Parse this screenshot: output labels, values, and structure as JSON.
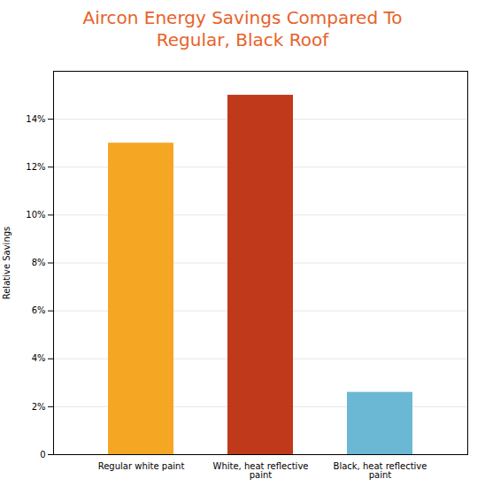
{
  "chart_data": {
    "type": "bar",
    "title": "Aircon Energy Savings Compared To\nRegular, Black Roof",
    "categories": [
      "Regular white paint",
      "White, heat reflective\npaint",
      "Black, heat reflective\npaint"
    ],
    "values": [
      13.0,
      15.0,
      2.6
    ],
    "colors": [
      "#F5A623",
      "#C0391B",
      "#6BB8D4"
    ],
    "ylabel": "Relative Savings",
    "ylim": [
      0,
      16
    ],
    "yticks": [
      0,
      {
        "value": 2,
        "label": "2%"
      },
      {
        "value": 4,
        "label": "4%"
      },
      {
        "value": 6,
        "label": "6%"
      },
      {
        "value": 8,
        "label": "8%"
      },
      {
        "value": 10,
        "label": "10%"
      },
      {
        "value": 12,
        "label": "12%"
      },
      {
        "value": 14,
        "label": "14%"
      }
    ],
    "grid": true
  }
}
